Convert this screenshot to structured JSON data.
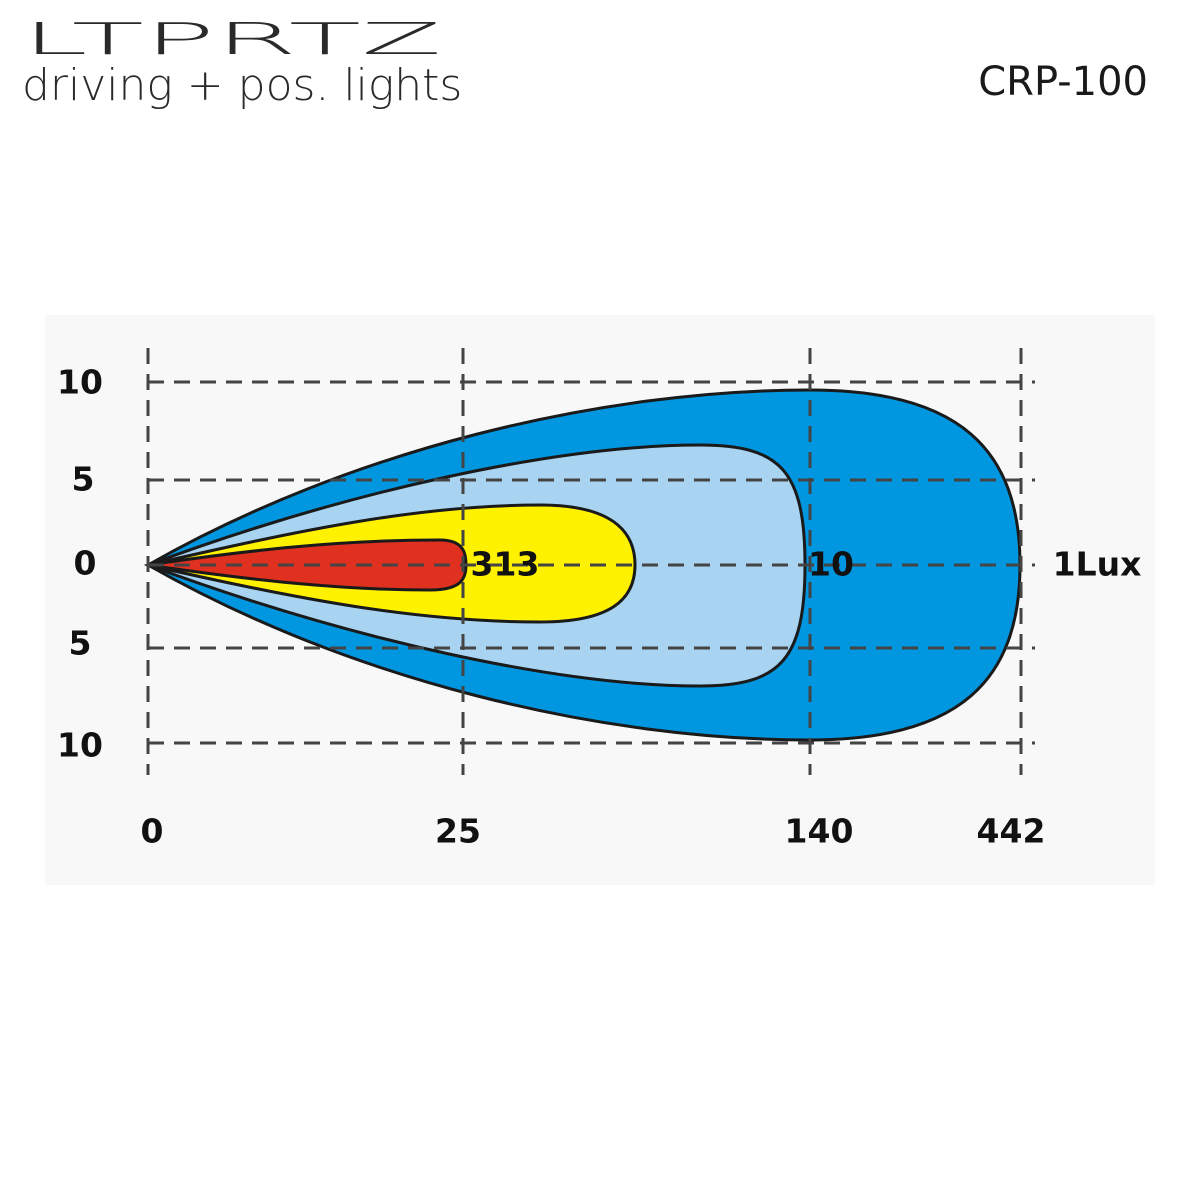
{
  "header": {
    "logo": "LTPRTZ",
    "subtitle": "driving + pos. lights",
    "model": "CRP-100"
  },
  "diagram": {
    "y_labels": [
      "10",
      "5",
      "0",
      "5",
      "10"
    ],
    "x_labels": [
      "0",
      "25",
      "140",
      "442"
    ],
    "contour_labels": [
      "313",
      "10",
      "1Lux"
    ]
  }
}
